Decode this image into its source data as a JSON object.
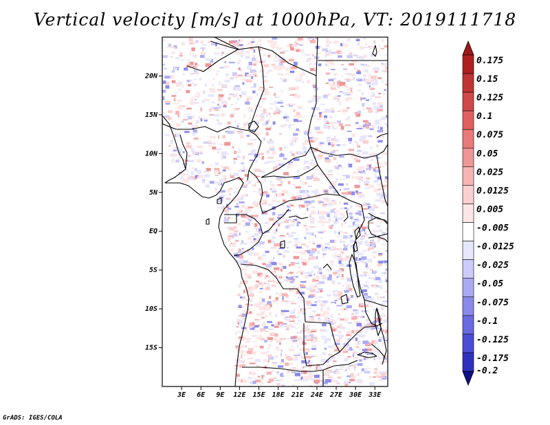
{
  "title": "Vertical velocity [m/s] at 1000hPa, VT: 2019111718",
  "credit": "GrADS: IGES/COLA",
  "map": {
    "lon_range": [
      0,
      35
    ],
    "lat_range": [
      -20,
      25
    ],
    "lat_ticks": [
      {
        "value": 20,
        "label": "20N"
      },
      {
        "value": 15,
        "label": "15N"
      },
      {
        "value": 10,
        "label": "10N"
      },
      {
        "value": 5,
        "label": "5N"
      },
      {
        "value": 0,
        "label": "EQ"
      },
      {
        "value": -5,
        "label": "5S"
      },
      {
        "value": -10,
        "label": "10S"
      },
      {
        "value": -15,
        "label": "15S"
      }
    ],
    "lon_ticks": [
      {
        "value": 3,
        "label": "3E"
      },
      {
        "value": 6,
        "label": "6E"
      },
      {
        "value": 9,
        "label": "9E"
      },
      {
        "value": 12,
        "label": "12E"
      },
      {
        "value": 15,
        "label": "15E"
      },
      {
        "value": 18,
        "label": "18E"
      },
      {
        "value": 21,
        "label": "21E"
      },
      {
        "value": 24,
        "label": "24E"
      },
      {
        "value": 27,
        "label": "27E"
      },
      {
        "value": 30,
        "label": "30E"
      },
      {
        "value": 33,
        "label": "33E"
      }
    ]
  },
  "colorbar": {
    "levels": [
      {
        "label": "0.175",
        "color": "#b02020"
      },
      {
        "label": "0.15",
        "color": "#c03434"
      },
      {
        "label": "0.125",
        "color": "#d04848"
      },
      {
        "label": "0.1",
        "color": "#e06060"
      },
      {
        "label": "0.075",
        "color": "#e87a7a"
      },
      {
        "label": "0.05",
        "color": "#f09696"
      },
      {
        "label": "0.025",
        "color": "#f6b4b4"
      },
      {
        "label": "0.0125",
        "color": "#fad0d0"
      },
      {
        "label": "0.005",
        "color": "#fde6e6"
      },
      {
        "label": "-0.005",
        "color": "#ffffff"
      },
      {
        "label": "-0.0125",
        "color": "#e6e6fd"
      },
      {
        "label": "-0.025",
        "color": "#ccccfa"
      },
      {
        "label": "-0.05",
        "color": "#aaaaf4"
      },
      {
        "label": "-0.075",
        "color": "#8a8aec"
      },
      {
        "label": "-0.1",
        "color": "#6a6ae2"
      },
      {
        "label": "-0.125",
        "color": "#4c4cd6"
      },
      {
        "label": "-0.175",
        "color": "#3030c0"
      },
      {
        "label": "-0.2",
        "color": "#1a1aa0"
      }
    ],
    "top_color": "#a01818",
    "bottom_color": "#10108a"
  }
}
